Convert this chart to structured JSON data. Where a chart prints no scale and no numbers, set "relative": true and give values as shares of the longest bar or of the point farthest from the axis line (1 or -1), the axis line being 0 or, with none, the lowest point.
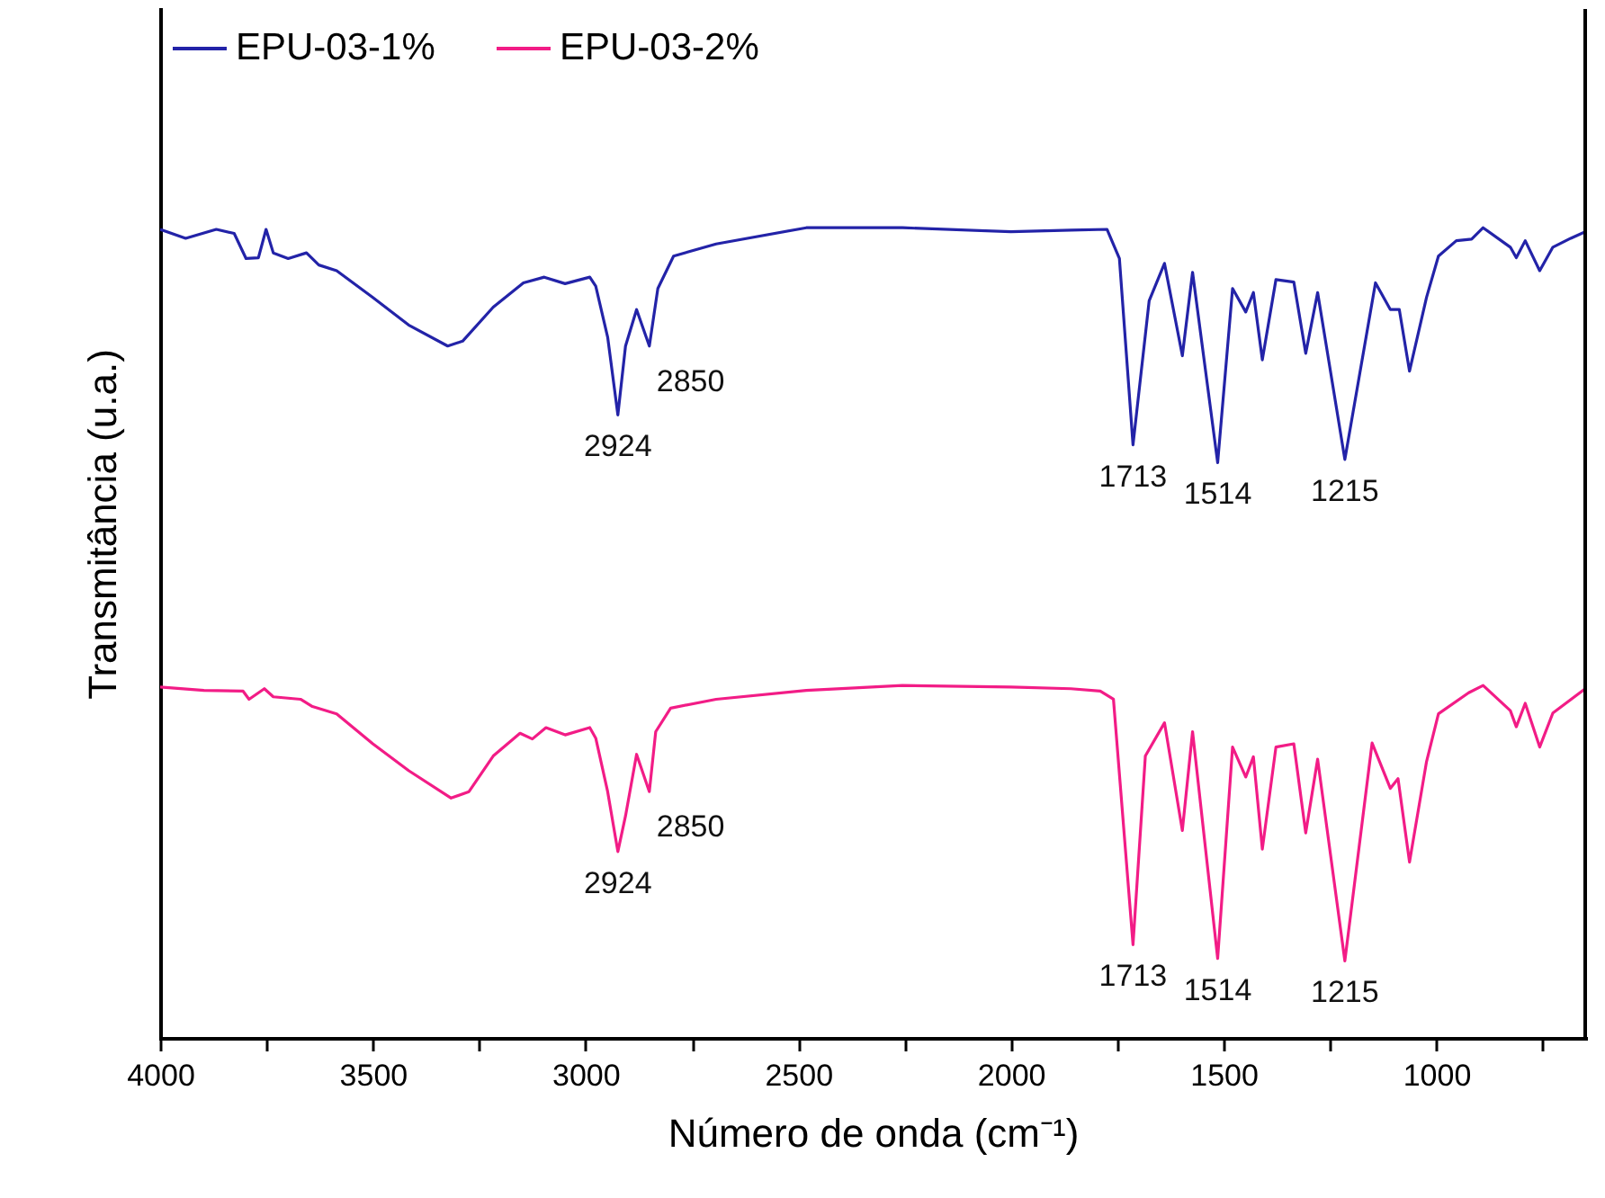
{
  "chart_data": {
    "type": "line",
    "relative": true,
    "xlabel": "Número de onda (cm⁻¹)",
    "ylabel": "Transmitância (u.a.)",
    "xlim": [
      4000,
      650
    ],
    "xticks": [
      4000,
      {
        "value": 3750,
        "label": null
      },
      3500,
      {
        "value": 3250,
        "label": null
      },
      3000,
      {
        "value": 2750,
        "label": null
      },
      2500,
      {
        "value": 2250,
        "label": null
      },
      2000,
      {
        "value": 1750,
        "label": null
      },
      1500,
      {
        "value": 1250,
        "label": null
      },
      1000,
      {
        "value": 750,
        "label": null
      }
    ],
    "legend": "top left",
    "grid": false,
    "tick_labels": "x",
    "series": [
      {
        "name": "EPU-03-1%",
        "color": "#2323a8",
        "x": [
          4000,
          3940,
          3868,
          3826,
          3798,
          3769,
          3751,
          3734,
          3699,
          3656,
          3627,
          3585,
          3500,
          3416,
          3324,
          3289,
          3217,
          3146,
          3097,
          3048,
          2990,
          2976,
          2948,
          2924,
          2906,
          2880,
          2850,
          2830,
          2793,
          2693,
          2481,
          2255,
          2000,
          1859,
          1774,
          1745,
          1713,
          1675,
          1639,
          1597,
          1573,
          1514,
          1479,
          1448,
          1430,
          1409,
          1377,
          1335,
          1307,
          1279,
          1215,
          1143,
          1108,
          1087,
          1063,
          1023,
          995,
          953,
          917,
          890,
          826,
          812,
          791,
          757,
          726,
          684,
          650
        ],
        "values": [
          0.998,
          0.987,
          0.998,
          0.993,
          0.962,
          0.963,
          0.998,
          0.969,
          0.962,
          0.969,
          0.954,
          0.947,
          0.914,
          0.88,
          0.854,
          0.86,
          0.902,
          0.932,
          0.939,
          0.931,
          0.939,
          0.928,
          0.865,
          0.769,
          0.854,
          0.899,
          0.854,
          0.925,
          0.965,
          0.98,
          1.0,
          1.0,
          0.995,
          0.997,
          0.998,
          0.962,
          0.732,
          0.91,
          0.956,
          0.842,
          0.945,
          0.71,
          0.925,
          0.896,
          0.92,
          0.837,
          0.936,
          0.933,
          0.845,
          0.92,
          0.714,
          0.932,
          0.899,
          0.899,
          0.823,
          0.914,
          0.965,
          0.984,
          0.986,
          1.0,
          0.976,
          0.963,
          0.984,
          0.947,
          0.976,
          0.987,
          0.995
        ]
      },
      {
        "name": "EPU-03-2%",
        "color": "#f21c86",
        "x": [
          4000,
          3897,
          3805,
          3791,
          3755,
          3734,
          3670,
          3642,
          3585,
          3500,
          3416,
          3316,
          3274,
          3217,
          3154,
          3125,
          3093,
          3048,
          2990,
          2976,
          2948,
          2924,
          2906,
          2880,
          2850,
          2835,
          2800,
          2693,
          2481,
          2255,
          2000,
          1859,
          1790,
          1759,
          1713,
          1684,
          1639,
          1597,
          1573,
          1514,
          1479,
          1448,
          1430,
          1409,
          1377,
          1335,
          1307,
          1279,
          1215,
          1151,
          1108,
          1090,
          1063,
          1023,
          995,
          924,
          890,
          826,
          812,
          791,
          757,
          726,
          650
        ],
        "values": [
          0.433,
          0.429,
          0.428,
          0.418,
          0.431,
          0.421,
          0.418,
          0.409,
          0.4,
          0.363,
          0.33,
          0.296,
          0.304,
          0.348,
          0.376,
          0.369,
          0.383,
          0.374,
          0.383,
          0.37,
          0.304,
          0.23,
          0.274,
          0.35,
          0.304,
          0.378,
          0.407,
          0.418,
          0.429,
          0.435,
          0.433,
          0.431,
          0.428,
          0.418,
          0.115,
          0.348,
          0.389,
          0.256,
          0.378,
          0.098,
          0.359,
          0.322,
          0.347,
          0.233,
          0.359,
          0.363,
          0.253,
          0.344,
          0.095,
          0.364,
          0.308,
          0.32,
          0.217,
          0.341,
          0.4,
          0.426,
          0.435,
          0.404,
          0.384,
          0.413,
          0.359,
          0.401,
          0.431
        ]
      }
    ],
    "annotations": [
      {
        "text": "2924",
        "x": 2924,
        "y": 0.769
      },
      {
        "text": "2850",
        "x": 2850,
        "y": 0.854
      },
      {
        "text": "1713",
        "x": 1713,
        "y": 0.732
      },
      {
        "text": "1514",
        "x": 1514,
        "y": 0.71
      },
      {
        "text": "1215",
        "x": 1215,
        "y": 0.714
      },
      {
        "text": "2924",
        "x": 2924,
        "y": 0.23
      },
      {
        "text": "2850",
        "x": 2850,
        "y": 0.304
      },
      {
        "text": "1713",
        "x": 1713,
        "y": 0.115
      },
      {
        "text": "1514",
        "x": 1514,
        "y": 0.098
      },
      {
        "text": "1215",
        "x": 1215,
        "y": 0.095
      }
    ]
  }
}
